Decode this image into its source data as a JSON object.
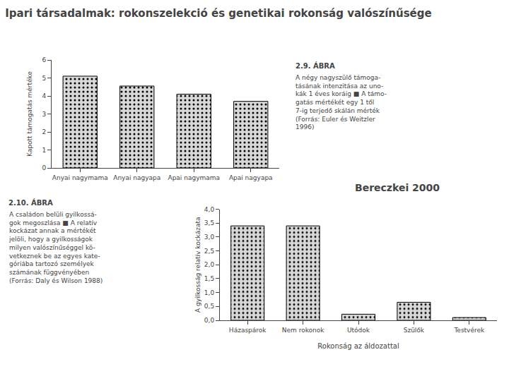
{
  "title": "Ipari társadalmak: rokonszelekció és genetikai rokonság valószínűsége",
  "annotations": [
    "Bereczkei 2000"
  ],
  "chart_data": [
    {
      "type": "bar",
      "categories": [
        "Anyai nagymama",
        "Anyai nagyapa",
        "Apai nagymama",
        "Apai nagyapa"
      ],
      "values": [
        5.1,
        4.55,
        4.1,
        3.7
      ],
      "ylabel": "Kapott támogatás mértéke",
      "ylim": [
        0,
        6
      ],
      "yticks": [
        0,
        1,
        2,
        3,
        4,
        5,
        6
      ],
      "color": "#d8d8d8",
      "grid": false,
      "annotations": [
        "2.9. ÁBRA",
        "A négy nagyszülő támoga-\ntásának intenzitása az uno-\nkák 1 éves koráig ■ A támo-\ngatás mértékét egy 1 től\n7-ig terjedő skálán mérték\n(Forrás: Euler és Weitzler\n1996)"
      ]
    },
    {
      "type": "bar",
      "categories": [
        "Házaspárok",
        "Nem rokonok",
        "Utódok",
        "Szülők",
        "Testvérek"
      ],
      "values": [
        3.4,
        3.4,
        0.22,
        0.65,
        0.1
      ],
      "ylabel": "A gyilkosság relatív kockázata",
      "xlabel": "Rokonság az áldozattal",
      "ylim": [
        0,
        4.0
      ],
      "yticks": [
        {
          "value": 0.0,
          "label": "0,0"
        },
        {
          "value": 0.5,
          "label": "0,5"
        },
        {
          "value": 1.0,
          "label": "1,0"
        },
        {
          "value": 1.5,
          "label": "1,5"
        },
        {
          "value": 2.0,
          "label": "2,0"
        },
        {
          "value": 2.5,
          "label": "2,5"
        },
        {
          "value": 3.0,
          "label": "3,0"
        },
        {
          "value": 3.5,
          "label": "3,5"
        },
        {
          "value": 4.0,
          "label": "4,0"
        }
      ],
      "color": "#d8d8d8",
      "grid": false,
      "annotations": [
        "2.10. ÁBRA",
        "A családon belüli gyilkossá-\ngok megoszlása ■ A relatív\nkockázat annak a mértékét\njelöli, hogy a gyilkosságok\nmilyen valószínűséggel kö-\nvetkeznek be az egyes kate-\ngóriába tartozó személyek\nszámának függvényében\n(Forrás: Daly és Wilson 1988)"
      ]
    }
  ]
}
